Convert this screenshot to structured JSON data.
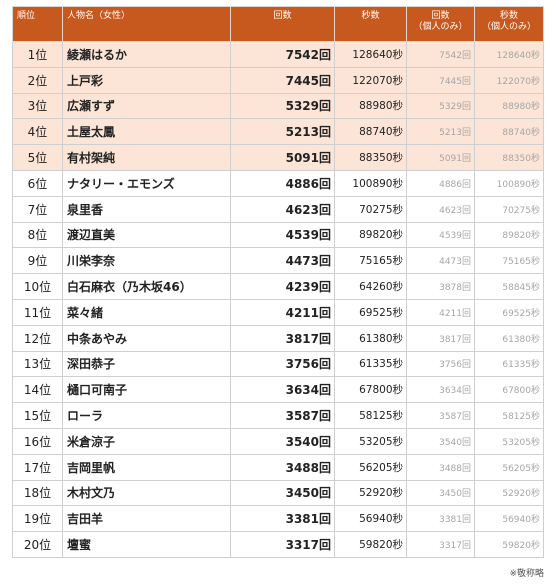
{
  "headers": {
    "rank": "順位",
    "name": "人物名（女性）",
    "count": "回数",
    "seconds": "秒数",
    "personal_count_1": "回数",
    "personal_count_2": "（個人のみ）",
    "personal_seconds_1": "秒数",
    "personal_seconds_2": "（個人のみ）"
  },
  "rows": [
    {
      "rank": "1位",
      "name": "綾瀬はるか",
      "count": "7542回",
      "seconds": "128640秒",
      "pcount": "7542回",
      "pseconds": "128640秒"
    },
    {
      "rank": "2位",
      "name": "上戸彩",
      "count": "7445回",
      "seconds": "122070秒",
      "pcount": "7445回",
      "pseconds": "122070秒"
    },
    {
      "rank": "3位",
      "name": "広瀬すず",
      "count": "5329回",
      "seconds": "88980秒",
      "pcount": "5329回",
      "pseconds": "88980秒"
    },
    {
      "rank": "4位",
      "name": "土屋太鳳",
      "count": "5213回",
      "seconds": "88740秒",
      "pcount": "5213回",
      "pseconds": "88740秒"
    },
    {
      "rank": "5位",
      "name": "有村架純",
      "count": "5091回",
      "seconds": "88350秒",
      "pcount": "5091回",
      "pseconds": "88350秒"
    },
    {
      "rank": "6位",
      "name": "ナタリー・エモンズ",
      "count": "4886回",
      "seconds": "100890秒",
      "pcount": "4886回",
      "pseconds": "100890秒"
    },
    {
      "rank": "7位",
      "name": "泉里香",
      "count": "4623回",
      "seconds": "70275秒",
      "pcount": "4623回",
      "pseconds": "70275秒"
    },
    {
      "rank": "8位",
      "name": "渡辺直美",
      "count": "4539回",
      "seconds": "89820秒",
      "pcount": "4539回",
      "pseconds": "89820秒"
    },
    {
      "rank": "9位",
      "name": "川栄李奈",
      "count": "4473回",
      "seconds": "75165秒",
      "pcount": "4473回",
      "pseconds": "75165秒"
    },
    {
      "rank": "10位",
      "name": "白石麻衣（乃木坂46）",
      "count": "4239回",
      "seconds": "64260秒",
      "pcount": "3878回",
      "pseconds": "58845秒"
    },
    {
      "rank": "11位",
      "name": "菜々緒",
      "count": "4211回",
      "seconds": "69525秒",
      "pcount": "4211回",
      "pseconds": "69525秒"
    },
    {
      "rank": "12位",
      "name": "中条あやみ",
      "count": "3817回",
      "seconds": "61380秒",
      "pcount": "3817回",
      "pseconds": "61380秒"
    },
    {
      "rank": "13位",
      "name": "深田恭子",
      "count": "3756回",
      "seconds": "61335秒",
      "pcount": "3756回",
      "pseconds": "61335秒"
    },
    {
      "rank": "14位",
      "name": "樋口可南子",
      "count": "3634回",
      "seconds": "67800秒",
      "pcount": "3634回",
      "pseconds": "67800秒"
    },
    {
      "rank": "15位",
      "name": "ローラ",
      "count": "3587回",
      "seconds": "58125秒",
      "pcount": "3587回",
      "pseconds": "58125秒"
    },
    {
      "rank": "16位",
      "name": "米倉涼子",
      "count": "3540回",
      "seconds": "53205秒",
      "pcount": "3540回",
      "pseconds": "53205秒"
    },
    {
      "rank": "17位",
      "name": "吉岡里帆",
      "count": "3488回",
      "seconds": "56205秒",
      "pcount": "3488回",
      "pseconds": "56205秒"
    },
    {
      "rank": "18位",
      "name": "木村文乃",
      "count": "3450回",
      "seconds": "52920秒",
      "pcount": "3450回",
      "pseconds": "52920秒"
    },
    {
      "rank": "19位",
      "name": "吉田羊",
      "count": "3381回",
      "seconds": "56940秒",
      "pcount": "3381回",
      "pseconds": "56940秒"
    },
    {
      "rank": "20位",
      "name": "壇蜜",
      "count": "3317回",
      "seconds": "59820秒",
      "pcount": "3317回",
      "pseconds": "59820秒"
    }
  ],
  "highlighted_rows": 5,
  "note": "※敬称略",
  "colors": {
    "header_bg": "#c8591e",
    "highlight_bg": "#fce4d6"
  }
}
